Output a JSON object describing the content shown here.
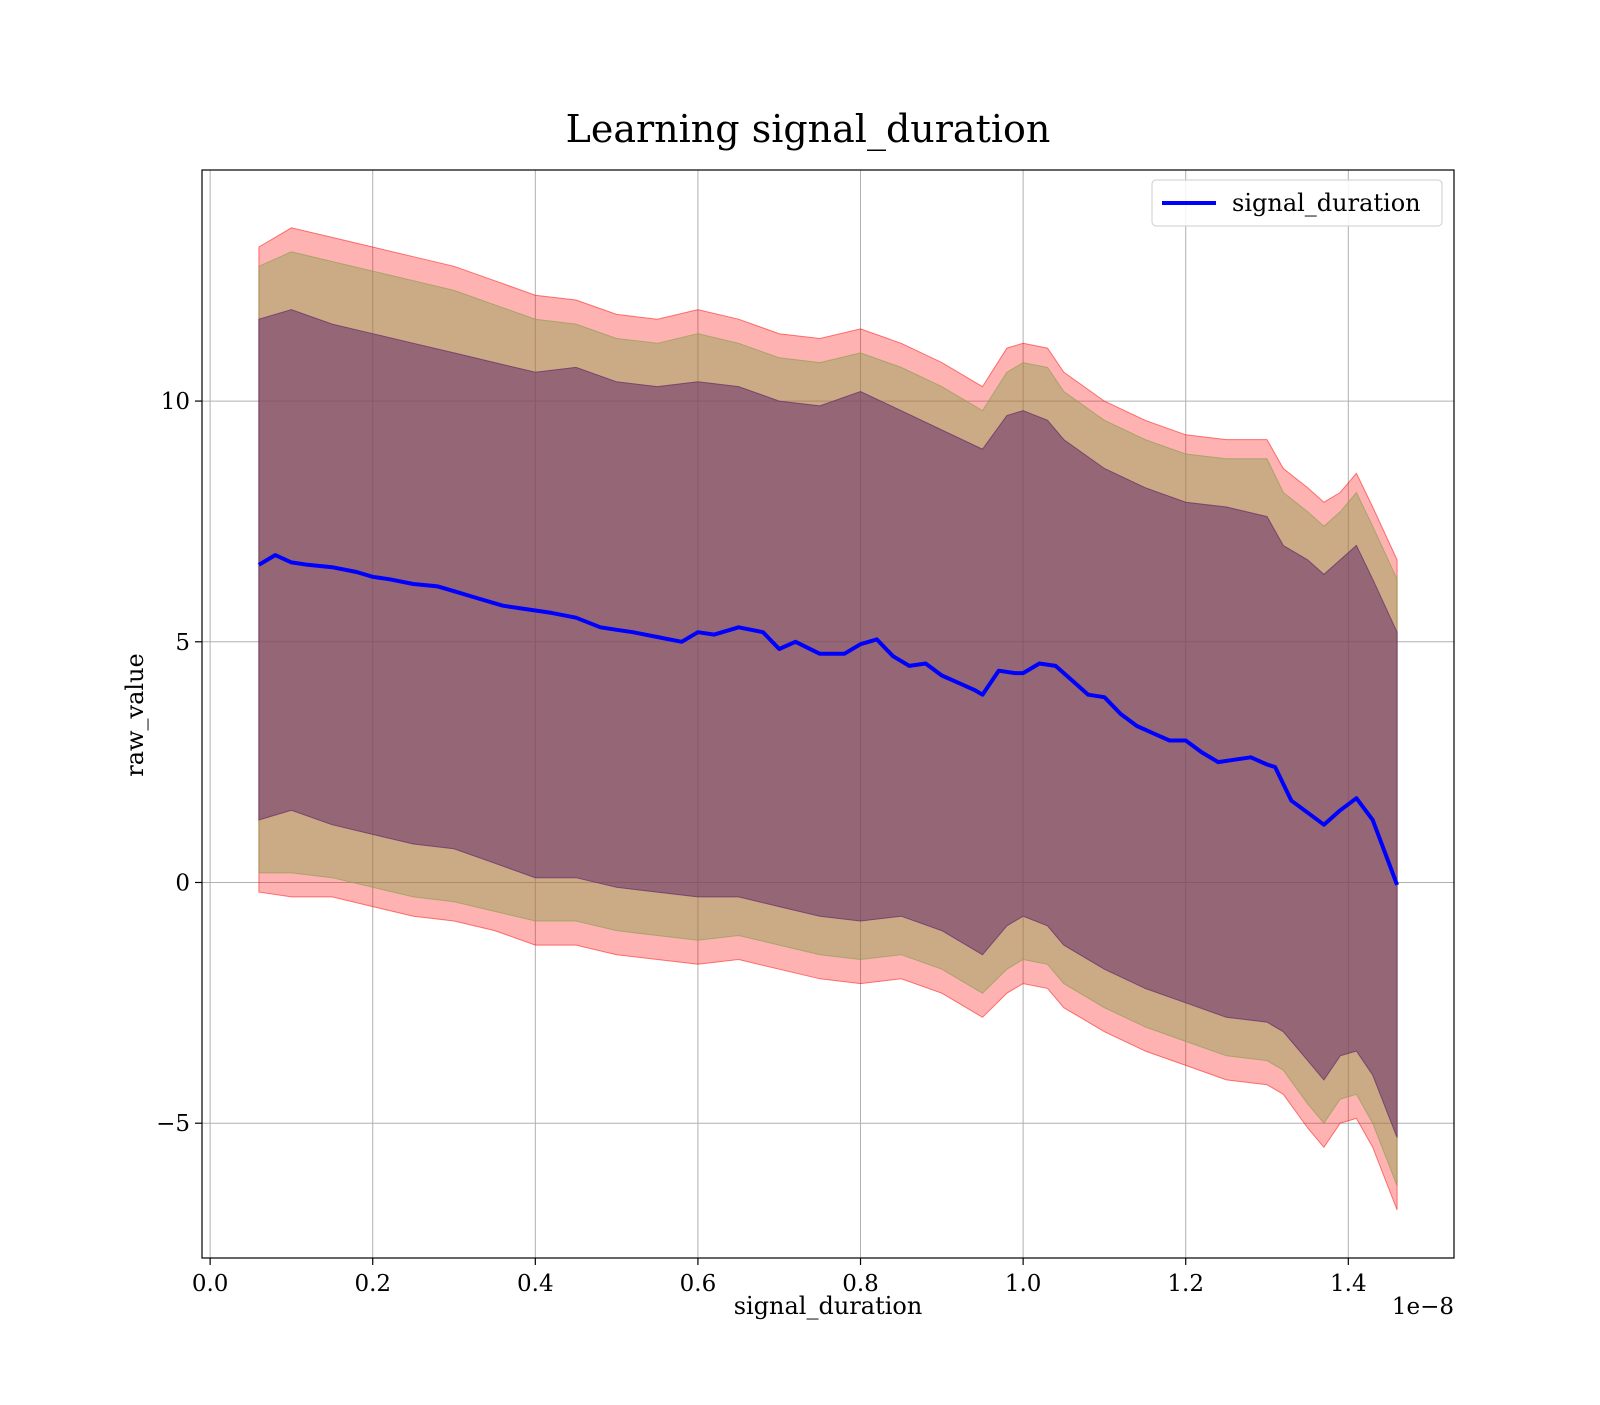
{
  "chart_data": {
    "type": "line",
    "title": "Learning signal_duration",
    "xlabel": "signal_duration",
    "ylabel": "raw_value",
    "x_offset_label": "1e−8",
    "xlim": [
      -0.01,
      1.53
    ],
    "ylim": [
      -7.8,
      14.8
    ],
    "x_ticks": [
      {
        "value": 0.0,
        "label": "0.0"
      },
      {
        "value": 0.2,
        "label": "0.2"
      },
      {
        "value": 0.4,
        "label": "0.4"
      },
      {
        "value": 0.6,
        "label": "0.6"
      },
      {
        "value": 0.8,
        "label": "0.8"
      },
      {
        "value": 1.0,
        "label": "1.0"
      },
      {
        "value": 1.2,
        "label": "1.2"
      },
      {
        "value": 1.4,
        "label": "1.4"
      }
    ],
    "y_ticks": [
      {
        "value": -5,
        "label": "−5"
      },
      {
        "value": 0,
        "label": "0"
      },
      {
        "value": 5,
        "label": "5"
      },
      {
        "value": 10,
        "label": "10"
      }
    ],
    "grid": true,
    "legend": {
      "position": "top-right",
      "entries": [
        "signal_duration"
      ]
    },
    "series": [
      {
        "name": "signal_duration",
        "color": "#0000ff",
        "x": [
          0.06,
          0.08,
          0.1,
          0.12,
          0.15,
          0.18,
          0.2,
          0.22,
          0.25,
          0.28,
          0.3,
          0.33,
          0.36,
          0.38,
          0.4,
          0.42,
          0.45,
          0.48,
          0.5,
          0.52,
          0.55,
          0.58,
          0.6,
          0.62,
          0.65,
          0.68,
          0.7,
          0.72,
          0.75,
          0.78,
          0.8,
          0.82,
          0.84,
          0.86,
          0.88,
          0.9,
          0.92,
          0.94,
          0.95,
          0.97,
          0.99,
          1.0,
          1.02,
          1.04,
          1.06,
          1.08,
          1.1,
          1.12,
          1.14,
          1.16,
          1.18,
          1.2,
          1.22,
          1.24,
          1.26,
          1.28,
          1.3,
          1.31,
          1.33,
          1.35,
          1.37,
          1.39,
          1.41,
          1.43,
          1.46
        ],
        "y": [
          6.6,
          6.8,
          6.65,
          6.6,
          6.55,
          6.45,
          6.35,
          6.3,
          6.2,
          6.15,
          6.05,
          5.9,
          5.75,
          5.7,
          5.65,
          5.6,
          5.5,
          5.3,
          5.25,
          5.2,
          5.1,
          5.0,
          5.2,
          5.15,
          5.3,
          5.2,
          4.85,
          5.0,
          4.75,
          4.75,
          4.95,
          5.05,
          4.7,
          4.5,
          4.55,
          4.3,
          4.15,
          4.0,
          3.9,
          4.4,
          4.35,
          4.35,
          4.55,
          4.5,
          4.2,
          3.9,
          3.85,
          3.5,
          3.25,
          3.1,
          2.95,
          2.95,
          2.7,
          2.5,
          2.55,
          2.6,
          2.45,
          2.4,
          1.7,
          1.45,
          1.2,
          1.5,
          1.75,
          1.3,
          -0.05
        ]
      }
    ],
    "bands": [
      {
        "name": "outer",
        "color": "#ff0000",
        "opacity": 0.3,
        "x": [
          0.06,
          0.1,
          0.15,
          0.2,
          0.25,
          0.3,
          0.35,
          0.4,
          0.45,
          0.5,
          0.55,
          0.6,
          0.65,
          0.7,
          0.75,
          0.8,
          0.85,
          0.9,
          0.95,
          0.98,
          1.0,
          1.03,
          1.05,
          1.1,
          1.15,
          1.2,
          1.25,
          1.3,
          1.32,
          1.35,
          1.37,
          1.39,
          1.41,
          1.43,
          1.46
        ],
        "upper": [
          13.2,
          13.6,
          13.4,
          13.2,
          13.0,
          12.8,
          12.5,
          12.2,
          12.1,
          11.8,
          11.7,
          11.9,
          11.7,
          11.4,
          11.3,
          11.5,
          11.2,
          10.8,
          10.3,
          11.1,
          11.2,
          11.1,
          10.6,
          10.0,
          9.6,
          9.3,
          9.2,
          9.2,
          8.6,
          8.2,
          7.9,
          8.1,
          8.5,
          7.8,
          6.7
        ],
        "lower": [
          -0.2,
          -0.3,
          -0.3,
          -0.5,
          -0.7,
          -0.8,
          -1.0,
          -1.3,
          -1.3,
          -1.5,
          -1.6,
          -1.7,
          -1.6,
          -1.8,
          -2.0,
          -2.1,
          -2.0,
          -2.3,
          -2.8,
          -2.3,
          -2.1,
          -2.2,
          -2.6,
          -3.1,
          -3.5,
          -3.8,
          -4.1,
          -4.2,
          -4.4,
          -5.1,
          -5.5,
          -5.0,
          -4.9,
          -5.5,
          -6.8
        ]
      },
      {
        "name": "middle",
        "color": "#8c9f50",
        "opacity": 0.45,
        "x": [
          0.06,
          0.1,
          0.15,
          0.2,
          0.25,
          0.3,
          0.35,
          0.4,
          0.45,
          0.5,
          0.55,
          0.6,
          0.65,
          0.7,
          0.75,
          0.8,
          0.85,
          0.9,
          0.95,
          0.98,
          1.0,
          1.03,
          1.05,
          1.1,
          1.15,
          1.2,
          1.25,
          1.3,
          1.32,
          1.35,
          1.37,
          1.39,
          1.41,
          1.43,
          1.46
        ],
        "upper": [
          12.8,
          13.1,
          12.9,
          12.7,
          12.5,
          12.3,
          12.0,
          11.7,
          11.6,
          11.3,
          11.2,
          11.4,
          11.2,
          10.9,
          10.8,
          11.0,
          10.7,
          10.3,
          9.8,
          10.6,
          10.8,
          10.7,
          10.2,
          9.6,
          9.2,
          8.9,
          8.8,
          8.8,
          8.1,
          7.7,
          7.4,
          7.7,
          8.1,
          7.4,
          6.3
        ],
        "lower": [
          0.2,
          0.2,
          0.1,
          -0.1,
          -0.3,
          -0.4,
          -0.6,
          -0.8,
          -0.8,
          -1.0,
          -1.1,
          -1.2,
          -1.1,
          -1.3,
          -1.5,
          -1.6,
          -1.5,
          -1.8,
          -2.3,
          -1.8,
          -1.6,
          -1.7,
          -2.1,
          -2.6,
          -3.0,
          -3.3,
          -3.6,
          -3.7,
          -3.9,
          -4.6,
          -5.0,
          -4.5,
          -4.4,
          -5.0,
          -6.3
        ]
      },
      {
        "name": "inner",
        "color": "#6a2f6a",
        "opacity": 0.55,
        "x": [
          0.06,
          0.1,
          0.15,
          0.2,
          0.25,
          0.3,
          0.35,
          0.4,
          0.45,
          0.5,
          0.55,
          0.6,
          0.65,
          0.7,
          0.75,
          0.8,
          0.85,
          0.9,
          0.95,
          0.98,
          1.0,
          1.03,
          1.05,
          1.1,
          1.15,
          1.2,
          1.25,
          1.3,
          1.32,
          1.35,
          1.37,
          1.39,
          1.41,
          1.43,
          1.46
        ],
        "upper": [
          11.7,
          11.9,
          11.6,
          11.4,
          11.2,
          11.0,
          10.8,
          10.6,
          10.7,
          10.4,
          10.3,
          10.4,
          10.3,
          10.0,
          9.9,
          10.2,
          9.8,
          9.4,
          9.0,
          9.7,
          9.8,
          9.6,
          9.2,
          8.6,
          8.2,
          7.9,
          7.8,
          7.6,
          7.0,
          6.7,
          6.4,
          6.7,
          7.0,
          6.3,
          5.2
        ],
        "lower": [
          1.3,
          1.5,
          1.2,
          1.0,
          0.8,
          0.7,
          0.4,
          0.1,
          0.1,
          -0.1,
          -0.2,
          -0.3,
          -0.3,
          -0.5,
          -0.7,
          -0.8,
          -0.7,
          -1.0,
          -1.5,
          -0.9,
          -0.7,
          -0.9,
          -1.3,
          -1.8,
          -2.2,
          -2.5,
          -2.8,
          -2.9,
          -3.1,
          -3.7,
          -4.1,
          -3.6,
          -3.5,
          -4.0,
          -5.3
        ]
      }
    ]
  }
}
